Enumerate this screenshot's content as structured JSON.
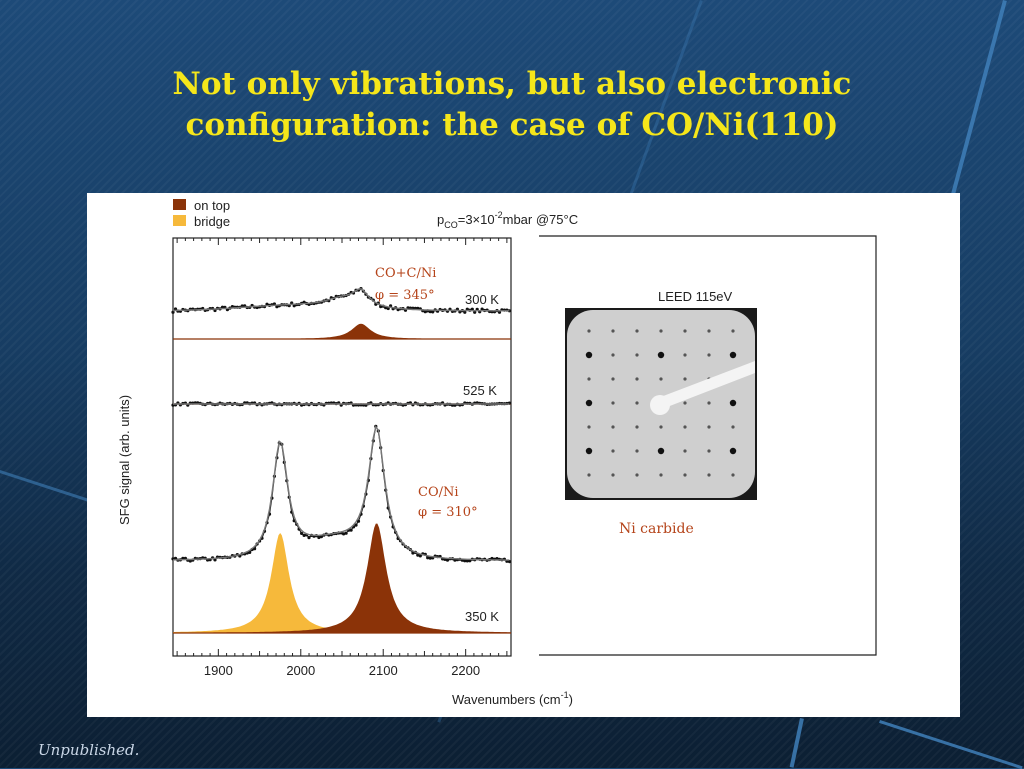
{
  "slide": {
    "title_line1": "Not only vibrations, but also electronic",
    "title_line2": "configuration: the case of CO/Ni(110)",
    "footer": "Unpublished."
  },
  "colors": {
    "on_top": "#8b3308",
    "bridge": "#f6b93b",
    "title": "#f5e61a",
    "annotation": "#b5441a"
  },
  "chart_data": {
    "type": "line",
    "condition_base": "p",
    "condition_sub": "CO",
    "condition_mid": "=3×10",
    "condition_sup": "-2",
    "condition_tail": "mbar @75°C",
    "xlabel_main": "Wavenumbers (cm",
    "xlabel_sup": "-1",
    "xlabel_tail": ")",
    "ylabel": "SFG signal (arb. units)",
    "xlim": [
      1845,
      2255
    ],
    "x_ticks": [
      1900,
      2000,
      2100,
      2200
    ],
    "legend": [
      {
        "name": "on top",
        "color": "#8b3308"
      },
      {
        "name": "bridge",
        "color": "#f6b93b"
      }
    ],
    "traces": [
      {
        "temperature": "300 K",
        "annotation_line1": "CO+C/Ni",
        "annotation_line2": "φ = 345°",
        "components": [
          {
            "type": "on top",
            "center": 2073,
            "amplitude": 0.45
          }
        ]
      },
      {
        "temperature": "525 K",
        "components": []
      },
      {
        "temperature": "350 K",
        "annotation_line1": "CO/Ni",
        "annotation_line2": "φ = 310°",
        "components": [
          {
            "type": "bridge",
            "center": 1975,
            "amplitude": 1.0
          },
          {
            "type": "on top",
            "center": 2092,
            "amplitude": 1.1
          }
        ]
      }
    ]
  },
  "leed": {
    "title": "LEED 115eV",
    "caption": "Ni carbide"
  }
}
